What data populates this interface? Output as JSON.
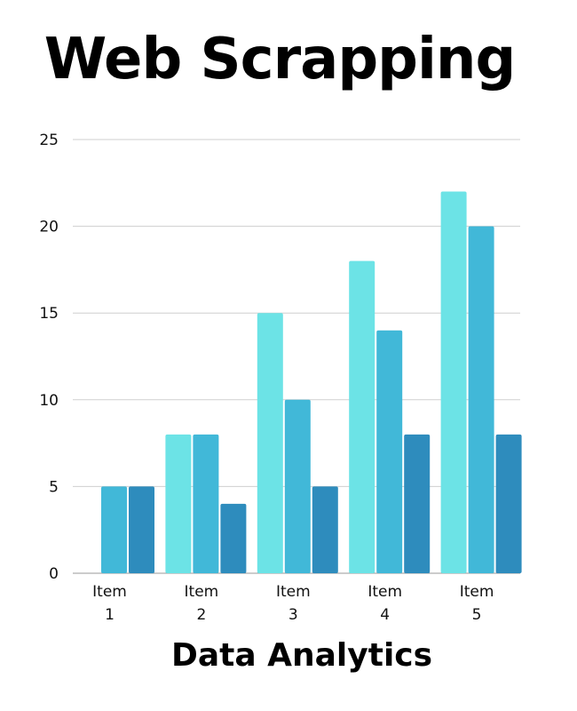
{
  "chart_data": {
    "type": "bar",
    "title": "Web Scrapping",
    "xlabel": "Data Analytics",
    "ylabel": "",
    "categories": [
      [
        "Item",
        "1"
      ],
      [
        "Item",
        "2"
      ],
      [
        "Item",
        "3"
      ],
      [
        "Item",
        "4"
      ],
      [
        "Item",
        "5"
      ]
    ],
    "series": [
      {
        "color": "#6ce3e6",
        "values": [
          0,
          8,
          15,
          18,
          22
        ]
      },
      {
        "color": "#41b8d8",
        "values": [
          5,
          8,
          10,
          14,
          20
        ]
      },
      {
        "color": "#2e8cbd",
        "values": [
          5,
          4,
          5,
          8,
          8
        ]
      }
    ],
    "yticks": [
      0,
      5,
      10,
      15,
      20,
      25
    ],
    "ylim": [
      0,
      25
    ],
    "grid": true,
    "legend": "none"
  }
}
